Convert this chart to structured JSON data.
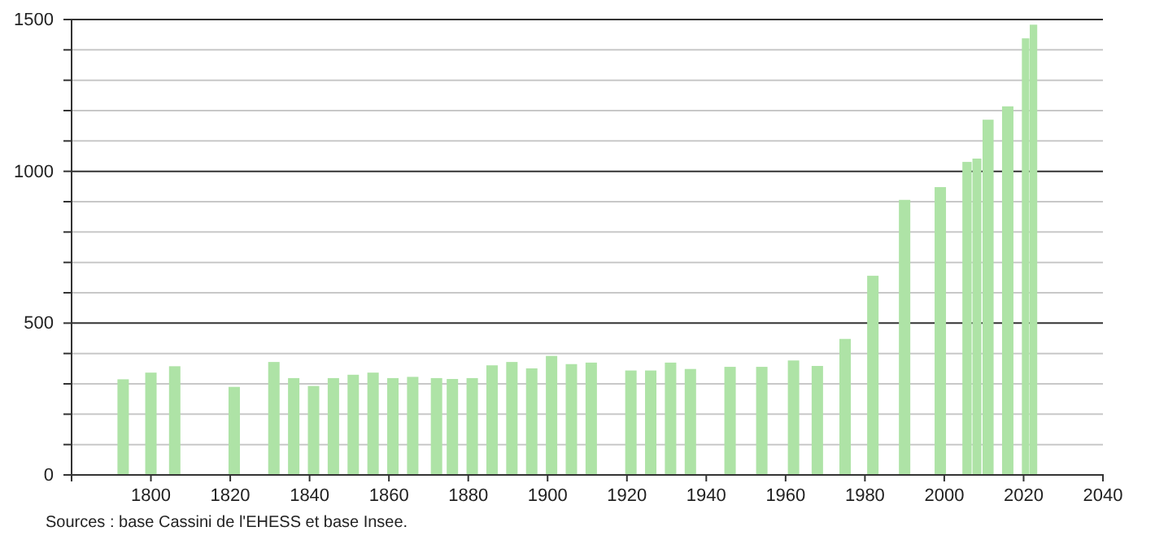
{
  "chart_data": {
    "type": "bar",
    "x": [
      1793,
      1800,
      1806,
      1821,
      1831,
      1836,
      1841,
      1846,
      1851,
      1856,
      1861,
      1866,
      1872,
      1876,
      1881,
      1886,
      1891,
      1896,
      1901,
      1906,
      1911,
      1921,
      1926,
      1931,
      1936,
      1946,
      1954,
      1962,
      1968,
      1975,
      1982,
      1990,
      1999,
      2006,
      2008,
      2011,
      2016,
      2021,
      2022
    ],
    "values": [
      315,
      337,
      358,
      290,
      372,
      319,
      293,
      319,
      330,
      337,
      319,
      323,
      319,
      316,
      319,
      361,
      372,
      351,
      392,
      365,
      370,
      344,
      344,
      370,
      349,
      356,
      356,
      377,
      359,
      448,
      656,
      906,
      948,
      1031,
      1042,
      1170,
      1214,
      1438,
      1483
    ],
    "color": "#aee3a6",
    "xlim": [
      1780,
      2040
    ],
    "xticks": [
      1800,
      1820,
      1840,
      1860,
      1880,
      1900,
      1920,
      1940,
      1960,
      1980,
      2000,
      2020,
      2040
    ],
    "ylim": [
      0,
      1500
    ],
    "yticks": [
      0,
      {
        "value": 100,
        "label": null
      },
      {
        "value": 200,
        "label": null
      },
      {
        "value": 300,
        "label": null
      },
      {
        "value": 400,
        "label": null
      },
      500,
      {
        "value": 600,
        "label": null
      },
      {
        "value": 700,
        "label": null
      },
      {
        "value": 800,
        "label": null
      },
      {
        "value": 900,
        "label": null
      },
      1000,
      {
        "value": 1100,
        "label": null
      },
      {
        "value": 1200,
        "label": null
      },
      {
        "value": 1300,
        "label": null
      },
      {
        "value": 1400,
        "label": null
      },
      1500
    ],
    "grid": "y",
    "annotations": [
      "Sources : base Cassini de l'EHESS et base Insee."
    ]
  }
}
